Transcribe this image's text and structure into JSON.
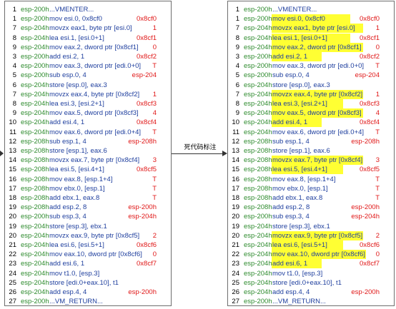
{
  "arrow_label": "死代码标注",
  "colors": {
    "line_number": "#000000",
    "esp": "#2e8b2e",
    "instruction": "#1f3f9e",
    "value": "#e01818",
    "highlight": "#ffff33"
  },
  "rows": [
    {
      "num": "1",
      "esp": "esp-200h",
      "instr": "...VMENTER...",
      "val": ""
    },
    {
      "num": "1",
      "esp": "esp-200h",
      "instr": "mov esi.0, 0x8cf0",
      "val": "0x8cf0"
    },
    {
      "num": "7",
      "esp": "esp-204h",
      "instr": "movzx eax1, byte ptr [esi.0]",
      "val": "1"
    },
    {
      "num": "8",
      "esp": "esp-204h",
      "instr": "lea esi.1, [esi.0+1]",
      "val": "0x8cf1"
    },
    {
      "num": "9",
      "esp": "esp-204h",
      "instr": "mov eax.2, dword ptr [0x8cf1]",
      "val": "0"
    },
    {
      "num": "3",
      "esp": "esp-200h",
      "instr": "add esi.2, 1",
      "val": "0x8cf2"
    },
    {
      "num": "4",
      "esp": "esp-200h",
      "instr": "mov eax.3, dword ptr [edi.0+0]",
      "val": "T"
    },
    {
      "num": "5",
      "esp": "esp-200h",
      "instr": "sub esp.0, 4",
      "val": "esp-204"
    },
    {
      "num": "6",
      "esp": "esp-204h",
      "instr": "store [esp.0], eax.3",
      "val": ""
    },
    {
      "num": "7",
      "esp": "esp-204h",
      "instr": "movzx eax.4, byte ptr [0x8cf2]",
      "val": "1"
    },
    {
      "num": "8",
      "esp": "esp-204h",
      "instr": "lea esi.3, [esi.2+1]",
      "val": "0x8cf3"
    },
    {
      "num": "9",
      "esp": "esp-204h",
      "instr": "mov eax.5, dword ptr [0x8cf3]",
      "val": "4"
    },
    {
      "num": "10",
      "esp": "esp-204h",
      "instr": "add esi.4, 1",
      "val": "0x8cf4"
    },
    {
      "num": "11",
      "esp": "esp-204h",
      "instr": "mov eax.6, dword ptr [edi.0+4]",
      "val": "T"
    },
    {
      "num": "12",
      "esp": "esp-208h",
      "instr": "sub esp.1, 4",
      "val": "esp-208h"
    },
    {
      "num": "13",
      "esp": "esp-208h",
      "instr": "store [esp.1], eax.6",
      "val": ""
    },
    {
      "num": "14",
      "esp": "esp-208h",
      "instr": "movzx eax.7, byte ptr [0x8cf4]",
      "val": "3"
    },
    {
      "num": "15",
      "esp": "esp-208h",
      "instr": "lea esi.5, [esi.4+1]",
      "val": "0x8cf5"
    },
    {
      "num": "16",
      "esp": "esp-208h",
      "instr": "mov eax.8, [esp.1+4]",
      "val": "T"
    },
    {
      "num": "17",
      "esp": "esp-208h",
      "instr": "mov ebx.0, [esp.1]",
      "val": "T"
    },
    {
      "num": "18",
      "esp": "esp-208h",
      "instr": "add ebx.1, eax.8",
      "val": "T"
    },
    {
      "num": "19",
      "esp": "esp-208h",
      "instr": "add esp.2, 8",
      "val": "esp-200h"
    },
    {
      "num": "20",
      "esp": "esp-200h",
      "instr": "sub esp.3, 4",
      "val": "esp-204h"
    },
    {
      "num": "19",
      "esp": "esp-204h",
      "instr": "store [esp.3], ebx.1",
      "val": ""
    },
    {
      "num": "20",
      "esp": "esp-204h",
      "instr": "movzx eax.9, byte ptr [0x8cf5]",
      "val": "2"
    },
    {
      "num": "21",
      "esp": "esp-204h",
      "instr": "lea esi.6, [esi.5+1]",
      "val": "0x8cf6"
    },
    {
      "num": "22",
      "esp": "esp-204h",
      "instr": "mov eax.10, dword ptr [0x8cf6]",
      "val": "0"
    },
    {
      "num": "23",
      "esp": "esp-204h",
      "instr": "add esi.6, 1",
      "val": "0x8cf7"
    },
    {
      "num": "24",
      "esp": "esp-204h",
      "instr": "mov t1.0, [esp.3]",
      "val": ""
    },
    {
      "num": "25",
      "esp": "esp-204h",
      "instr": "store [edi.0+eax.10], t1",
      "val": ""
    },
    {
      "num": "26",
      "esp": "esp-204h",
      "instr": "add esp.4, 4",
      "val": "esp-200h"
    },
    {
      "num": "27",
      "esp": "esp-200h",
      "instr": "...VM_RETURN...",
      "val": ""
    }
  ],
  "dead_code_rows": [
    1,
    2,
    3,
    4,
    5,
    9,
    10,
    11,
    12,
    16,
    17,
    24,
    25,
    26,
    27
  ]
}
